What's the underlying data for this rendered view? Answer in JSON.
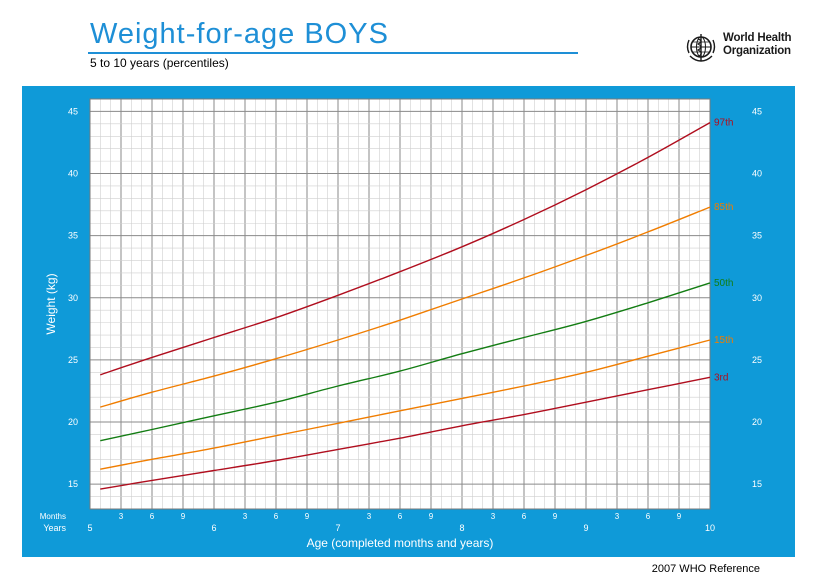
{
  "header": {
    "title": "Weight-for-age  BOYS",
    "subtitle": "5 to 10 years (percentiles)"
  },
  "logo": {
    "icon": "who-emblem-icon",
    "line1": "World Health",
    "line2": "Organization"
  },
  "footer": {
    "text": "2007 WHO Reference"
  },
  "colors": {
    "panel": "#0f9ad8",
    "title": "#1e8fd6",
    "p97": "#b00e1e",
    "p85": "#f07d00",
    "p50": "#137d13",
    "p15": "#f07d00",
    "p3": "#b00e1e"
  },
  "chart_data": {
    "type": "line",
    "xlabel": "Age (completed months and years)",
    "ylabel": "Weight (kg)",
    "xlim": [
      5,
      10
    ],
    "ylim": [
      13,
      46
    ],
    "grid": true,
    "y_ticks": [
      15,
      20,
      25,
      30,
      35,
      40,
      45
    ],
    "month_ticks_label": "Months",
    "year_ticks_label": "Years",
    "year_ticks": [
      "5",
      "6",
      "7",
      "8",
      "9",
      "10"
    ],
    "month_ticks": [
      "3",
      "6",
      "9"
    ],
    "x": [
      5.083,
      5.5,
      6,
      6.5,
      7,
      7.5,
      8,
      8.5,
      9,
      9.5,
      10
    ],
    "series": [
      {
        "name": "97th",
        "color": "#b00e1e",
        "values": [
          23.8,
          25.2,
          26.8,
          28.4,
          30.2,
          32.1,
          34.1,
          36.3,
          38.7,
          41.3,
          44.1
        ]
      },
      {
        "name": "85th",
        "color": "#f07d00",
        "values": [
          21.2,
          22.4,
          23.7,
          25.1,
          26.6,
          28.2,
          29.9,
          31.6,
          33.4,
          35.3,
          37.3
        ]
      },
      {
        "name": "50th",
        "color": "#137d13",
        "values": [
          18.5,
          19.4,
          20.5,
          21.6,
          22.9,
          24.1,
          25.5,
          26.8,
          28.1,
          29.6,
          31.2
        ]
      },
      {
        "name": "15th",
        "color": "#f07d00",
        "values": [
          16.2,
          17.0,
          17.9,
          18.9,
          19.9,
          20.9,
          21.9,
          22.9,
          24.0,
          25.3,
          26.6
        ]
      },
      {
        "name": "3rd",
        "color": "#b00e1e",
        "values": [
          14.6,
          15.3,
          16.1,
          16.9,
          17.8,
          18.7,
          19.7,
          20.6,
          21.6,
          22.6,
          23.6
        ]
      }
    ]
  }
}
